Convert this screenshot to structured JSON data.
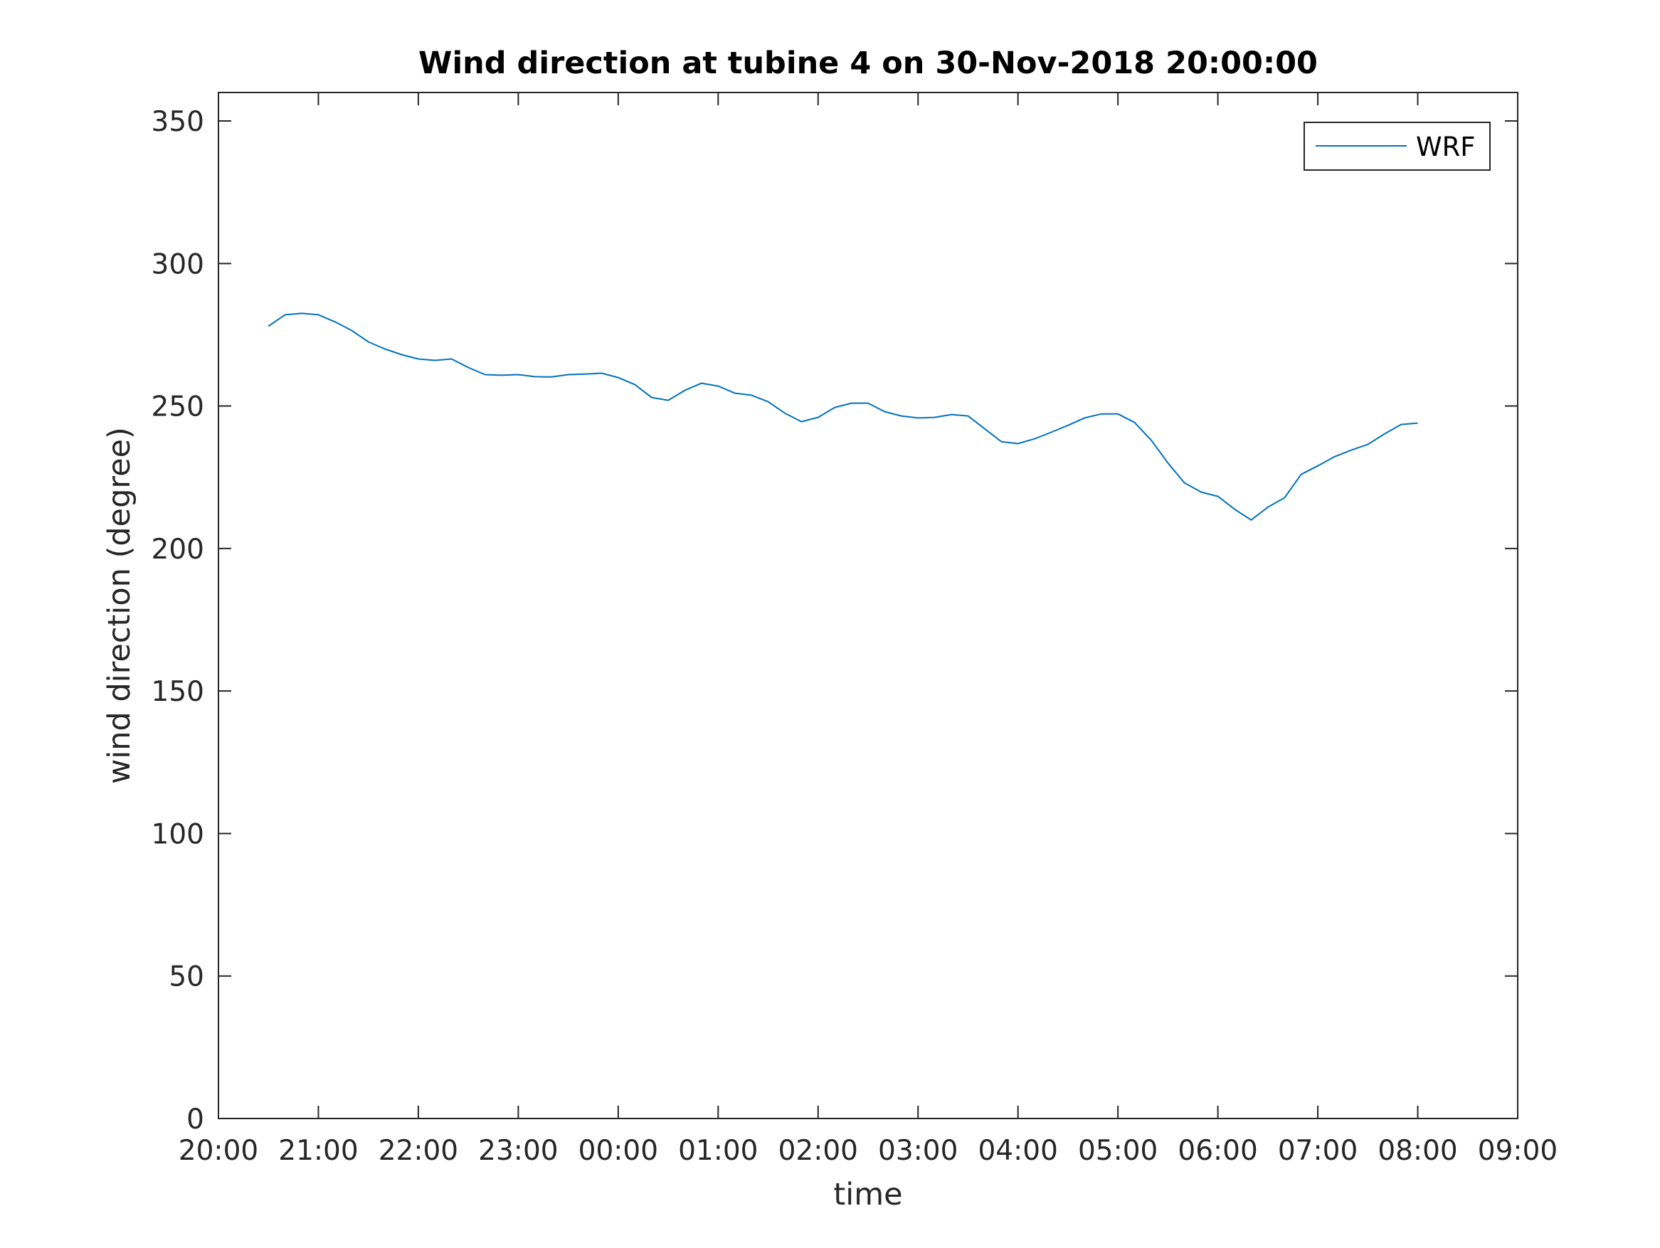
{
  "chart_data": {
    "type": "line",
    "title": "Wind direction at tubine 4 on 30-Nov-2018 20:00:00",
    "xlabel": "time",
    "ylabel": "wind direction (degree)",
    "xlim": [
      "20:00",
      "09:00"
    ],
    "ylim": [
      0,
      360
    ],
    "xticks": [
      "20:00",
      "21:00",
      "22:00",
      "23:00",
      "00:00",
      "01:00",
      "02:00",
      "03:00",
      "04:00",
      "05:00",
      "06:00",
      "07:00",
      "08:00",
      "09:00"
    ],
    "yticks": [
      0,
      50,
      100,
      150,
      200,
      250,
      300,
      350
    ],
    "grid": false,
    "legend_position": "top-right",
    "colors": {
      "series": "#0072bd",
      "axes": "#262626",
      "title": "#000000"
    },
    "series": [
      {
        "name": "WRF",
        "x": [
          "20:30",
          "20:40",
          "20:50",
          "21:00",
          "21:10",
          "21:20",
          "21:30",
          "21:40",
          "21:50",
          "22:00",
          "22:10",
          "22:20",
          "22:30",
          "22:40",
          "22:50",
          "23:00",
          "23:10",
          "23:20",
          "23:30",
          "23:40",
          "23:50",
          "00:00",
          "00:10",
          "00:20",
          "00:30",
          "00:40",
          "00:50",
          "01:00",
          "01:10",
          "01:20",
          "01:30",
          "01:40",
          "01:50",
          "02:00",
          "02:10",
          "02:20",
          "02:30",
          "02:40",
          "02:50",
          "03:00",
          "03:10",
          "03:20",
          "03:30",
          "03:40",
          "03:50",
          "04:00",
          "04:10",
          "04:20",
          "04:30",
          "04:40",
          "04:50",
          "05:00",
          "05:10",
          "05:20",
          "05:30",
          "05:40",
          "05:50",
          "06:00",
          "06:10",
          "06:20",
          "06:30",
          "06:40",
          "06:50",
          "07:00",
          "07:10",
          "07:20",
          "07:30",
          "07:40",
          "07:50",
          "08:00"
        ],
        "values": [
          278,
          282,
          282.5,
          282,
          279.5,
          276.5,
          272.5,
          270,
          268,
          266.5,
          266,
          266.5,
          263.5,
          261,
          260.8,
          261,
          260.3,
          260.2,
          261,
          261.2,
          261.5,
          260,
          257.5,
          253,
          252,
          255.5,
          258,
          257,
          254.5,
          253.8,
          251.5,
          247.5,
          244.5,
          246,
          249.5,
          251,
          251,
          248,
          246.5,
          245.8,
          246,
          247,
          246.5,
          242,
          237.5,
          236.8,
          238.5,
          240.8,
          243.2,
          245.8,
          247.2,
          247.2,
          244.2,
          238,
          230,
          223,
          219.8,
          218.3,
          213.8,
          210,
          214.5,
          217.8,
          226,
          229,
          232.2,
          234.5,
          236.5,
          240.2,
          243.5,
          244
        ]
      }
    ]
  }
}
